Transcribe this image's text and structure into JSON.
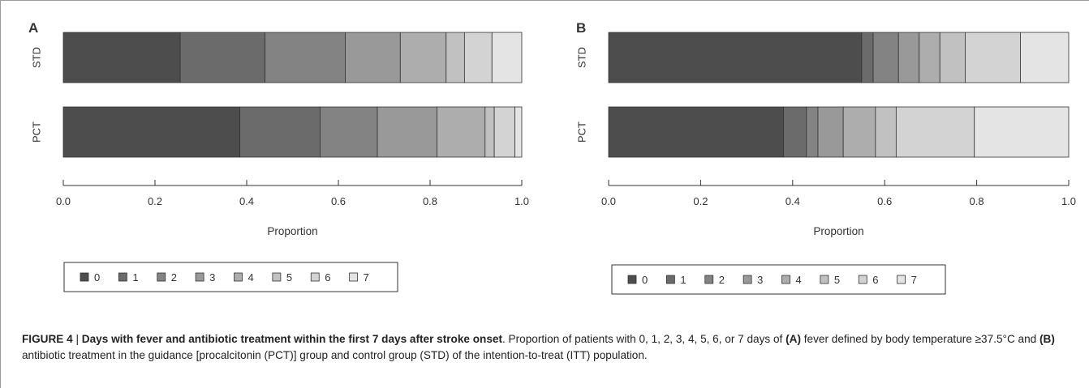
{
  "chart_data": [
    {
      "type": "bar",
      "orientation": "horizontal",
      "stacked": true,
      "panel_label": "A",
      "categories": [
        "STD",
        "PCT"
      ],
      "series": [
        {
          "name": "0",
          "values": [
            0.255,
            0.385
          ]
        },
        {
          "name": "1",
          "values": [
            0.185,
            0.175
          ]
        },
        {
          "name": "2",
          "values": [
            0.175,
            0.125
          ]
        },
        {
          "name": "3",
          "values": [
            0.12,
            0.13
          ]
        },
        {
          "name": "4",
          "values": [
            0.1,
            0.105
          ]
        },
        {
          "name": "5",
          "values": [
            0.04,
            0.02
          ]
        },
        {
          "name": "6",
          "values": [
            0.06,
            0.045
          ]
        },
        {
          "name": "7",
          "values": [
            0.065,
            0.015
          ]
        }
      ],
      "xlabel": "Proportion",
      "ylabel": "",
      "xlim": [
        0,
        1
      ],
      "x_ticks": [
        "0.0",
        "0.2",
        "0.4",
        "0.6",
        "0.8",
        "1.0"
      ],
      "legend_position": "bottom",
      "colors": [
        "#4d4d4d",
        "#6b6b6b",
        "#838383",
        "#999999",
        "#adadad",
        "#c1c1c1",
        "#d3d3d3",
        "#e4e4e4"
      ]
    },
    {
      "type": "bar",
      "orientation": "horizontal",
      "stacked": true,
      "panel_label": "B",
      "categories": [
        "STD",
        "PCT"
      ],
      "series": [
        {
          "name": "0",
          "values": [
            0.55,
            0.38
          ]
        },
        {
          "name": "1",
          "values": [
            0.025,
            0.05
          ]
        },
        {
          "name": "2",
          "values": [
            0.055,
            0.025
          ]
        },
        {
          "name": "3",
          "values": [
            0.045,
            0.055
          ]
        },
        {
          "name": "4",
          "values": [
            0.045,
            0.07
          ]
        },
        {
          "name": "5",
          "values": [
            0.055,
            0.045
          ]
        },
        {
          "name": "6",
          "values": [
            0.12,
            0.17
          ]
        },
        {
          "name": "7",
          "values": [
            0.105,
            0.205
          ]
        }
      ],
      "xlabel": "Proportion",
      "ylabel": "",
      "xlim": [
        0,
        1
      ],
      "x_ticks": [
        "0.0",
        "0.2",
        "0.4",
        "0.6",
        "0.8",
        "1.0"
      ],
      "legend_position": "bottom",
      "colors": [
        "#4d4d4d",
        "#6b6b6b",
        "#838383",
        "#999999",
        "#adadad",
        "#c1c1c1",
        "#d3d3d3",
        "#e4e4e4"
      ]
    }
  ],
  "caption": {
    "figure_label": "FIGURE 4",
    "separator": " | ",
    "title": "Days with fever and antibiotic treatment within the first 7 days after stroke onset",
    "text_1": ". Proportion of patients with 0, 1, 2, 3, 4, 5, 6, or 7 days of ",
    "ref_a": "(A)",
    "text_2": " fever defined by body temperature ≥37.5°C and ",
    "ref_b": "(B)",
    "text_3": " antibiotic treatment in the guidance [procalcitonin (PCT)] group and control group (STD) of the intention-to-treat (ITT) population."
  }
}
